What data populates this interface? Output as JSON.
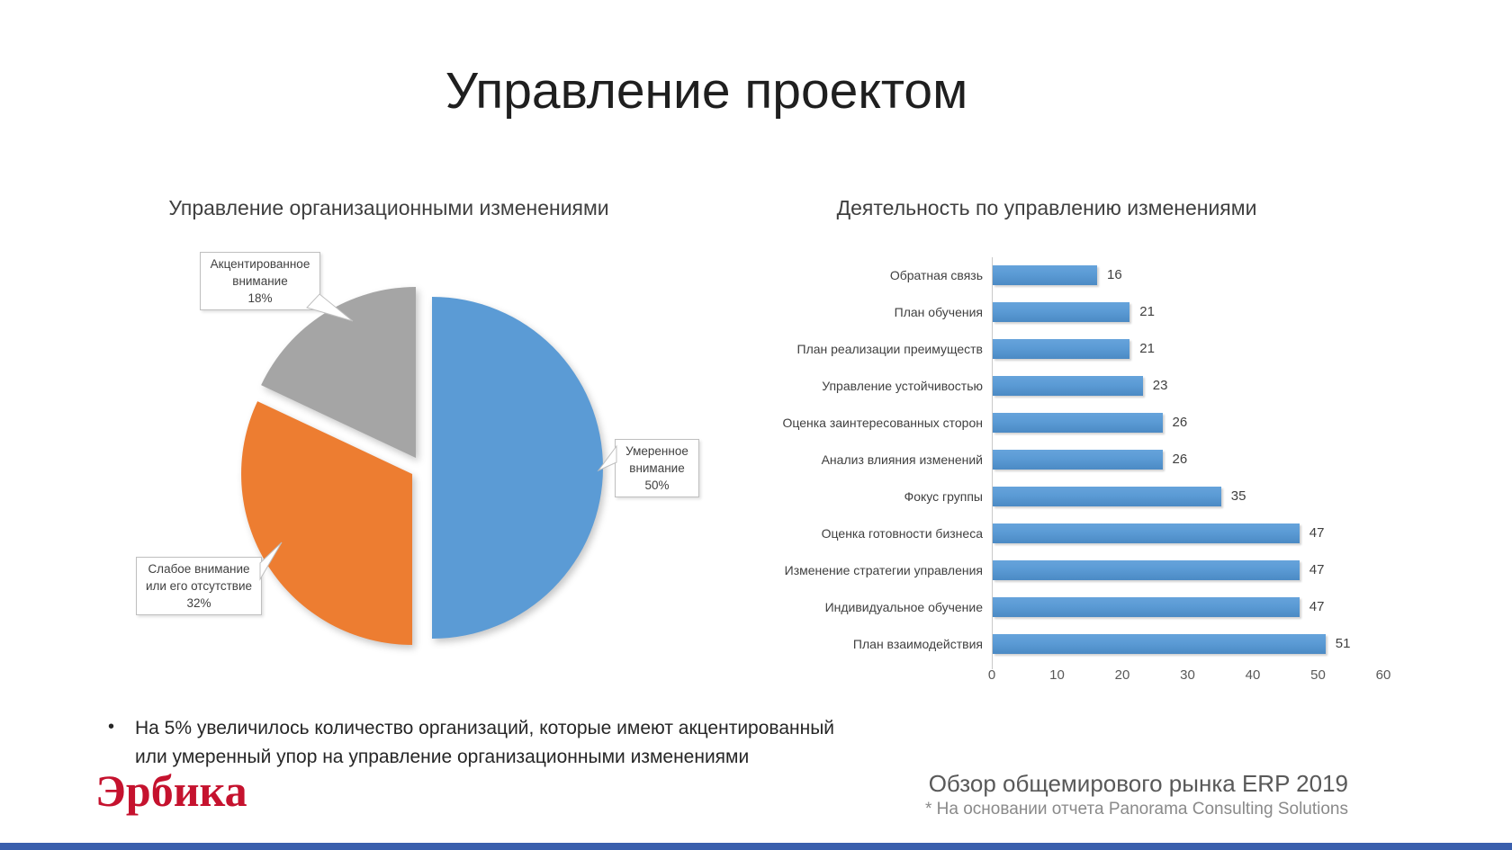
{
  "slide": {
    "title": "Управление проектом",
    "bullet": "На 5% увеличилось количество организаций, которые имеют акцентированный или умеренный упор на управление организационными изменениями",
    "bullet_marker": "•",
    "logo_text": "Эрбика",
    "footer_line1": "Обзор общемирового рынка ERP 2019",
    "footer_line2": "* На основании отчета Panorama Consulting Solutions"
  },
  "colors": {
    "pie_blue": "#5B9BD5",
    "pie_orange": "#ED7D31",
    "pie_gray": "#A5A5A5",
    "bar_blue": "#5B9BD5",
    "logo_red": "#C5122E",
    "bottom_strip_blue": "#3A5FAD"
  },
  "chart_data": [
    {
      "type": "pie",
      "title": "Управление организационными изменениями",
      "start_angle_deg": 0,
      "direction": "clockwise",
      "exploded": true,
      "slices": [
        {
          "label": "Умеренное внимание",
          "pct": "50%",
          "value": 50,
          "color": "#5B9BD5"
        },
        {
          "label": "Слабое внимание или его отсутствие",
          "pct": "32%",
          "value": 32,
          "color": "#ED7D31"
        },
        {
          "label": "Акцентированное внимание",
          "pct": "18%",
          "value": 18,
          "color": "#A5A5A5"
        }
      ]
    },
    {
      "type": "bar",
      "orientation": "horizontal",
      "title": "Деятельность по управлению изменениями",
      "categories": [
        "Обратная связь",
        "План обучения",
        "План реализации преимуществ",
        "Управление устойчивостью",
        "Оценка заинтересованных сторон",
        "Анализ влияния изменений",
        "Фокус группы",
        "Оценка готовности бизнеса",
        "Изменение стратегии управления",
        "Индивидуальное обучение",
        "План взаимодействия"
      ],
      "values": [
        16,
        21,
        21,
        23,
        26,
        26,
        35,
        47,
        47,
        47,
        51
      ],
      "x_ticks": [
        0,
        10,
        20,
        30,
        40,
        50,
        60
      ],
      "xlim": [
        0,
        60
      ],
      "grid": false,
      "data_labels": true,
      "bar_color": "#5B9BD5"
    }
  ]
}
